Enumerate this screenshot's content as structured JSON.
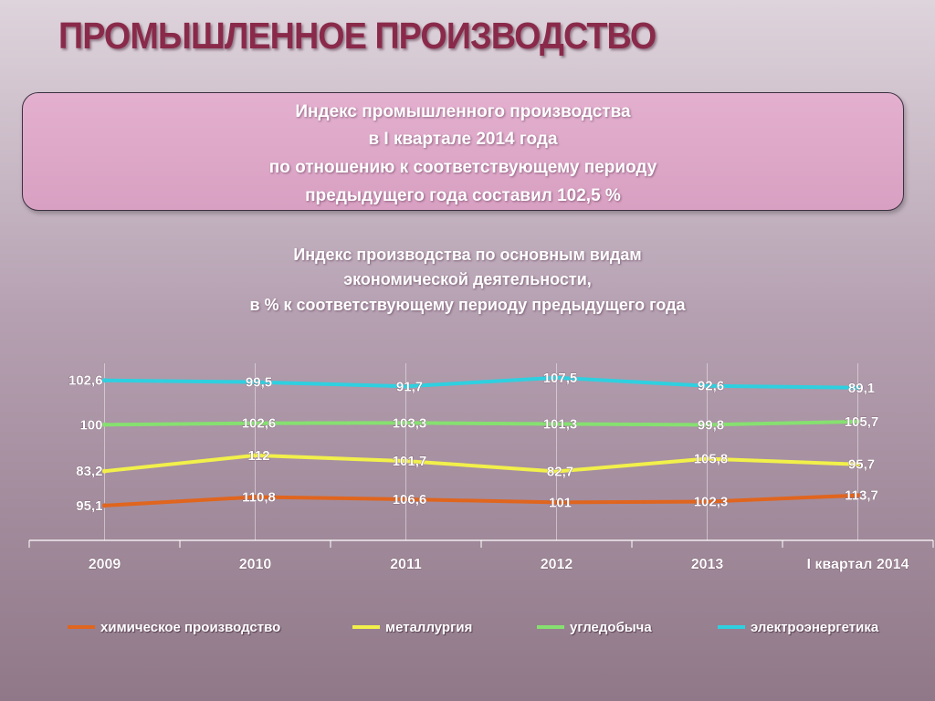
{
  "slide": {
    "title": "ПРОМЫШЛЕННОЕ ПРОИЗВОДСТВО",
    "summary_lines": [
      "Индекс промышленного производства",
      "в I квартале 2014 года",
      "по отношению к соответствующему периоду",
      "предыдущего года составил 102,5 %"
    ]
  },
  "chart_data": {
    "type": "line",
    "title_lines": [
      "Индекс производства по основным видам",
      "экономической деятельности,",
      "в %  к соответствующему периоду предыдущего года"
    ],
    "categories": [
      "2009",
      "2010",
      "2011",
      "2012",
      "2013",
      "I квартал 2014"
    ],
    "series": [
      {
        "name": "химическое производство",
        "color": "#e0651e",
        "values": [
          95.1,
          110.8,
          106.6,
          101,
          102.3,
          113.7
        ],
        "labels": [
          "95,1",
          "110,8",
          "106,6",
          "101",
          "102,3",
          "113,7"
        ]
      },
      {
        "name": "металлургия",
        "color": "#f2f04a",
        "values": [
          83.2,
          112,
          101.7,
          82.7,
          105.8,
          95.7
        ],
        "labels": [
          "83,2",
          "112",
          "101,7",
          "82,7",
          "105,8",
          "95,7"
        ]
      },
      {
        "name": "угледобыча",
        "color": "#86e070",
        "values": [
          100,
          102.6,
          103.3,
          101.3,
          99.8,
          105.7
        ],
        "labels": [
          "100",
          "102,6",
          "103,3",
          "101,3",
          "99,8",
          "105,7"
        ]
      },
      {
        "name": "электроэнергетика",
        "color": "#2ed0e0",
        "values": [
          102.6,
          99.5,
          91.7,
          107.5,
          92.6,
          89.1
        ],
        "labels": [
          "102,6",
          "99,5",
          "91,7",
          "107,5",
          "92,6",
          "89,1"
        ]
      }
    ],
    "legend_position": "bottom",
    "grid": "vertical"
  }
}
